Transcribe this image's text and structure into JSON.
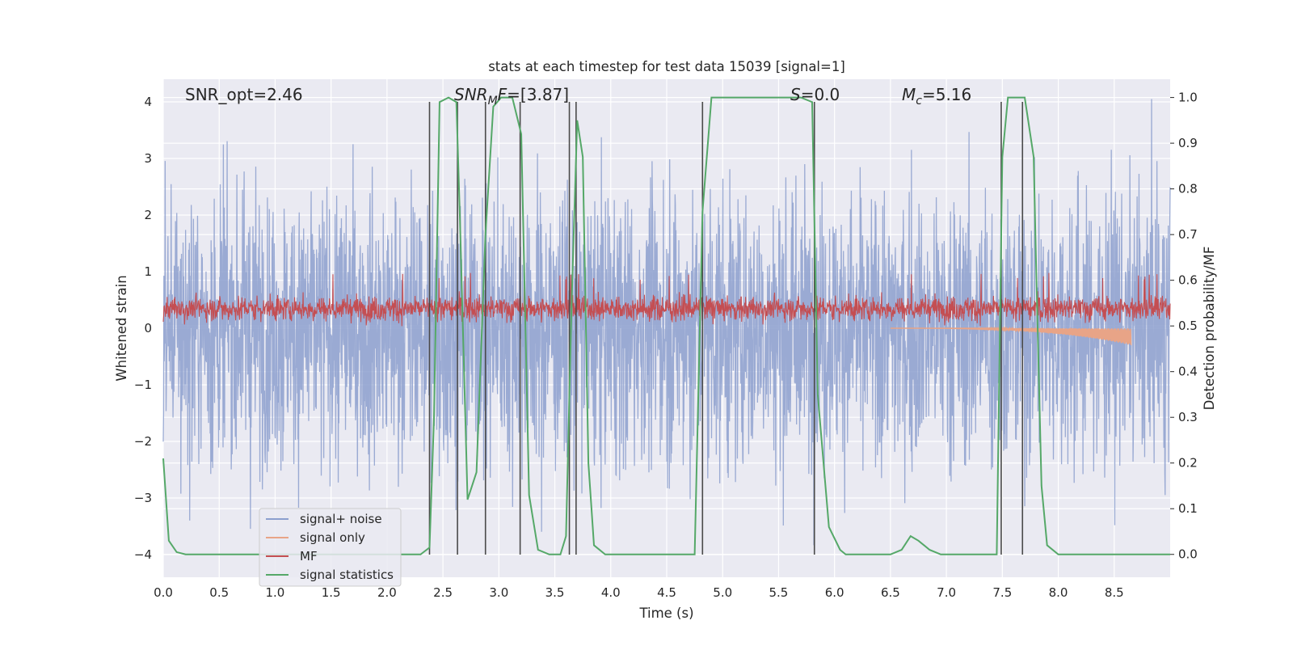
{
  "chart_data": {
    "type": "line",
    "title": "stats at each timestep for test data 15039 [signal=1]",
    "xlabel": "Time (s)",
    "ylabel_left": "Whitened strain",
    "ylabel_right": "Detection probability/MF",
    "xlim": [
      0,
      9.0
    ],
    "ylim_left": [
      -4.4,
      4.4
    ],
    "ylim_right": [
      -0.05,
      1.04
    ],
    "x_ticks": [
      "0.0",
      "0.5",
      "1.0",
      "1.5",
      "2.0",
      "2.5",
      "3.0",
      "3.5",
      "4.0",
      "4.5",
      "5.0",
      "5.5",
      "6.0",
      "6.5",
      "7.0",
      "7.5",
      "8.0",
      "8.5"
    ],
    "y_ticks_left": [
      -4,
      -3,
      -2,
      -1,
      0,
      1,
      2,
      3,
      4
    ],
    "y_ticks_left_labels": [
      "−4",
      "−3",
      "−2",
      "−1",
      "0",
      "1",
      "2",
      "3",
      "4"
    ],
    "y_ticks_right": [
      "0.0",
      "0.1",
      "0.2",
      "0.3",
      "0.4",
      "0.5",
      "0.6",
      "0.7",
      "0.8",
      "0.9",
      "1.0"
    ],
    "grid": true,
    "legend_position": "lower-left",
    "annotations": {
      "snr_opt": "SNR_opt=2.46",
      "snr_mf_sym": "SNR",
      "snr_mf_sub": "M",
      "snr_mf_tail": "F",
      "snr_mf_val": "=[3.87]",
      "s_sym": "S",
      "s_val": "=0.0",
      "mc_sym": "M",
      "mc_sub": "c",
      "mc_val": "=5.16"
    },
    "series": [
      {
        "name": "signal+ noise",
        "color": "#8c9fce",
        "axis": "left",
        "kind": "noise",
        "amplitude": 1.2
      },
      {
        "name": "signal only",
        "color": "#e8a487",
        "axis": "left",
        "kind": "chirp",
        "start": 6.5,
        "end": 8.65,
        "min": -0.3
      },
      {
        "name": "MF",
        "color": "#c44e52",
        "axis": "left",
        "kind": "noise-band",
        "center": 0.35,
        "amplitude": 0.2,
        "max": 0.98
      },
      {
        "name": "signal statistics",
        "color": "#55a868",
        "axis": "right",
        "x": [
          0.0,
          0.05,
          0.12,
          0.2,
          0.3,
          1.0,
          2.0,
          2.3,
          2.38,
          2.42,
          2.47,
          2.55,
          2.62,
          2.65,
          2.72,
          2.8,
          2.88,
          2.95,
          3.02,
          3.12,
          3.2,
          3.27,
          3.35,
          3.45,
          3.55,
          3.6,
          3.65,
          3.7,
          3.75,
          3.8,
          3.85,
          3.95,
          4.5,
          4.75,
          4.82,
          4.9,
          5.0,
          5.7,
          5.8,
          5.85,
          5.95,
          6.05,
          6.1,
          6.2,
          6.5,
          6.6,
          6.68,
          6.75,
          6.85,
          6.95,
          7.2,
          7.45,
          7.5,
          7.55,
          7.7,
          7.78,
          7.8,
          7.85,
          7.9,
          8.0,
          9.0
        ],
        "values": [
          0.21,
          0.03,
          0.005,
          0.0,
          0.0,
          0.0,
          0.0,
          0.0,
          0.015,
          0.3,
          0.99,
          1.0,
          0.99,
          0.75,
          0.12,
          0.18,
          0.7,
          0.98,
          1.0,
          1.0,
          0.92,
          0.13,
          0.01,
          0.0,
          0.0,
          0.04,
          0.55,
          0.95,
          0.87,
          0.2,
          0.02,
          0.0,
          0.0,
          0.0,
          0.75,
          1.0,
          1.0,
          1.0,
          0.99,
          0.35,
          0.06,
          0.01,
          0.0,
          0.0,
          0.0,
          0.01,
          0.04,
          0.03,
          0.01,
          0.0,
          0.0,
          0.0,
          0.87,
          1.0,
          1.0,
          0.87,
          0.65,
          0.15,
          0.02,
          0.0,
          0.0
        ]
      }
    ],
    "vertical_lines": [
      2.38,
      2.63,
      2.88,
      3.19,
      3.63,
      3.69,
      4.82,
      5.82,
      7.49,
      7.68
    ],
    "vertical_line_color": "#4a4a4a"
  }
}
